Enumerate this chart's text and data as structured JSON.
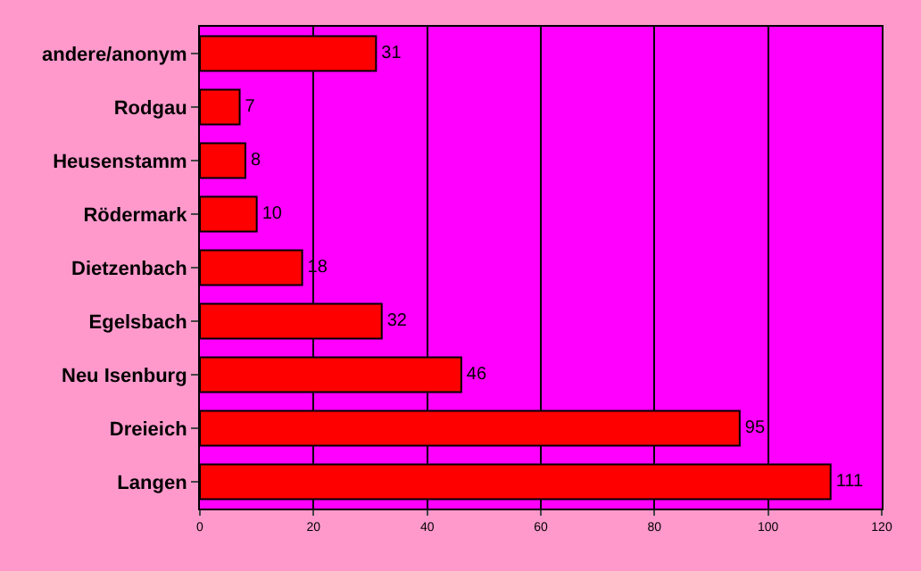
{
  "chart_data": {
    "type": "bar",
    "orientation": "horizontal",
    "categories": [
      "andere/anonym",
      "Rodgau",
      "Heusenstamm",
      "Rödermark",
      "Dietzenbach",
      "Egelsbach",
      "Neu Isenburg",
      "Dreieich",
      "Langen"
    ],
    "values": [
      31,
      7,
      8,
      10,
      18,
      32,
      46,
      95,
      111
    ],
    "color": "#ff0000",
    "xlim": [
      0,
      120
    ],
    "xticks": [
      0,
      20,
      40,
      60,
      80,
      100,
      120
    ],
    "grid": "x",
    "data_labels": true
  }
}
